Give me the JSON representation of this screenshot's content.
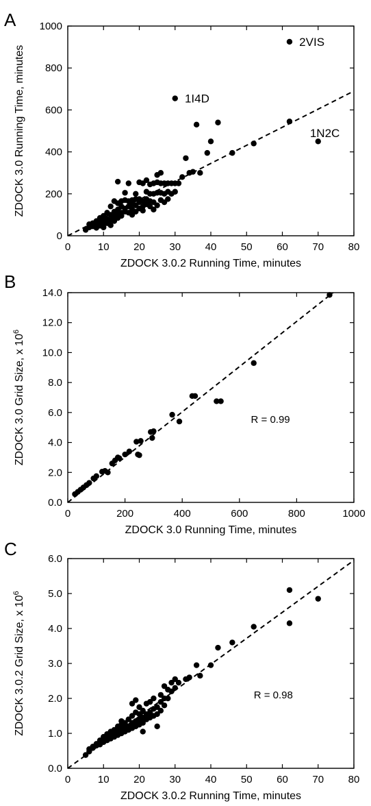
{
  "chart_data": [
    {
      "panel": "A",
      "type": "scatter",
      "xlabel": "ZDOCK 3.0.2 Running Time, minutes",
      "ylabel": "ZDOCK 3.0 Running Time, minutes",
      "xlim": [
        0,
        80
      ],
      "ylim": [
        0,
        1000
      ],
      "xticks": [
        0,
        10,
        20,
        30,
        40,
        50,
        60,
        70,
        80
      ],
      "yticks": [
        0,
        200,
        400,
        600,
        800,
        1000
      ],
      "tick_decimals": 0,
      "fit_line": [
        [
          0,
          0
        ],
        [
          80,
          690
        ]
      ],
      "annotations": [
        {
          "text": "2VIS",
          "x": 63,
          "y": 925
        },
        {
          "text": "1I4D",
          "x": 31,
          "y": 655
        },
        {
          "text": "1N2C",
          "x": 66,
          "y": 490
        }
      ],
      "points": [
        [
          5,
          28
        ],
        [
          6,
          40
        ],
        [
          6,
          55
        ],
        [
          7,
          45
        ],
        [
          7,
          60
        ],
        [
          8,
          38
        ],
        [
          8,
          50
        ],
        [
          8,
          70
        ],
        [
          9,
          62
        ],
        [
          9,
          85
        ],
        [
          9,
          48
        ],
        [
          10,
          55
        ],
        [
          10,
          72
        ],
        [
          10,
          95
        ],
        [
          10,
          40
        ],
        [
          11,
          60
        ],
        [
          11,
          80
        ],
        [
          11,
          110
        ],
        [
          11,
          65
        ],
        [
          12,
          50
        ],
        [
          12,
          75
        ],
        [
          12,
          100
        ],
        [
          12,
          140
        ],
        [
          13,
          90
        ],
        [
          13,
          115
        ],
        [
          13,
          165
        ],
        [
          13,
          70
        ],
        [
          14,
          100
        ],
        [
          14,
          125
        ],
        [
          14,
          155
        ],
        [
          14,
          85
        ],
        [
          14,
          258
        ],
        [
          15,
          110
        ],
        [
          15,
          140
        ],
        [
          15,
          165
        ],
        [
          15,
          95
        ],
        [
          16,
          115
        ],
        [
          16,
          130
        ],
        [
          16,
          170
        ],
        [
          16,
          205
        ],
        [
          17,
          110
        ],
        [
          17,
          140
        ],
        [
          17,
          165
        ],
        [
          17,
          250
        ],
        [
          18,
          125
        ],
        [
          18,
          150
        ],
        [
          18,
          170
        ],
        [
          18,
          100
        ],
        [
          19,
          115
        ],
        [
          19,
          145
        ],
        [
          19,
          175
        ],
        [
          19,
          200
        ],
        [
          20,
          130
        ],
        [
          20,
          160
        ],
        [
          20,
          175
        ],
        [
          20,
          255
        ],
        [
          21,
          140
        ],
        [
          21,
          165
        ],
        [
          21,
          250
        ],
        [
          21,
          120
        ],
        [
          22,
          150
        ],
        [
          22,
          175
        ],
        [
          22,
          210
        ],
        [
          22,
          265
        ],
        [
          23,
          140
        ],
        [
          23,
          165
        ],
        [
          23,
          200
        ],
        [
          23,
          245
        ],
        [
          24,
          160
        ],
        [
          24,
          200
        ],
        [
          24,
          250
        ],
        [
          24,
          125
        ],
        [
          25,
          145
        ],
        [
          25,
          205
        ],
        [
          25,
          255
        ],
        [
          25,
          290
        ],
        [
          26,
          170
        ],
        [
          26,
          205
        ],
        [
          26,
          250
        ],
        [
          26,
          300
        ],
        [
          27,
          160
        ],
        [
          27,
          200
        ],
        [
          27,
          250
        ],
        [
          28,
          175
        ],
        [
          28,
          210
        ],
        [
          28,
          250
        ],
        [
          29,
          200
        ],
        [
          29,
          250
        ],
        [
          30,
          210
        ],
        [
          30,
          250
        ],
        [
          30,
          655
        ],
        [
          31,
          250
        ],
        [
          32,
          280
        ],
        [
          33,
          370
        ],
        [
          34,
          300
        ],
        [
          35,
          305
        ],
        [
          36,
          530
        ],
        [
          37,
          300
        ],
        [
          39,
          395
        ],
        [
          40,
          450
        ],
        [
          42,
          540
        ],
        [
          46,
          395
        ],
        [
          52,
          440
        ],
        [
          62,
          545
        ],
        [
          62,
          925
        ],
        [
          70,
          450
        ]
      ]
    },
    {
      "panel": "B",
      "type": "scatter",
      "xlabel": "ZDOCK 3.0 Running Time, minutes",
      "ylabel": "ZDOCK 3.0 Grid Size, x 10",
      "ylabel_exp": "6",
      "xlim": [
        0,
        1000
      ],
      "ylim": [
        0,
        14
      ],
      "xticks": [
        0,
        200,
        400,
        600,
        800,
        1000
      ],
      "yticks": [
        0,
        2,
        4,
        6,
        8,
        10,
        12,
        14
      ],
      "tick_decimals": 1,
      "fit_line": [
        [
          0,
          0
        ],
        [
          1000,
          15.1
        ]
      ],
      "r_label": "R = 0.99",
      "r_pos": [
        640,
        5.3
      ],
      "points": [
        [
          25,
          0.55
        ],
        [
          35,
          0.7
        ],
        [
          45,
          0.85
        ],
        [
          55,
          1.0
        ],
        [
          65,
          1.15
        ],
        [
          75,
          1.3
        ],
        [
          90,
          1.6
        ],
        [
          100,
          1.75
        ],
        [
          120,
          2.05
        ],
        [
          130,
          2.1
        ],
        [
          140,
          2.0
        ],
        [
          155,
          2.6
        ],
        [
          165,
          2.8
        ],
        [
          175,
          3.0
        ],
        [
          180,
          2.95
        ],
        [
          200,
          3.2
        ],
        [
          215,
          3.4
        ],
        [
          240,
          4.05
        ],
        [
          245,
          3.2
        ],
        [
          250,
          3.15
        ],
        [
          255,
          4.1
        ],
        [
          290,
          4.7
        ],
        [
          295,
          4.3
        ],
        [
          300,
          4.75
        ],
        [
          365,
          5.85
        ],
        [
          390,
          5.4
        ],
        [
          435,
          7.1
        ],
        [
          445,
          7.1
        ],
        [
          520,
          6.75
        ],
        [
          535,
          6.75
        ],
        [
          650,
          9.3
        ],
        [
          915,
          13.85
        ]
      ]
    },
    {
      "panel": "C",
      "type": "scatter",
      "xlabel": "ZDOCK 3.0.2 Running Time, minutes",
      "ylabel": "ZDOCK 3.0.2 Grid Size, x 10",
      "ylabel_exp": "6",
      "xlim": [
        0,
        80
      ],
      "ylim": [
        0,
        6
      ],
      "xticks": [
        0,
        10,
        20,
        30,
        40,
        50,
        60,
        70,
        80
      ],
      "yticks": [
        0,
        1,
        2,
        3,
        4,
        5,
        6
      ],
      "tick_decimals": 1,
      "fit_line": [
        [
          0,
          0
        ],
        [
          80,
          5.95
        ]
      ],
      "r_label": "R = 0.98",
      "r_pos": [
        52,
        2.0
      ],
      "points": [
        [
          5,
          0.38
        ],
        [
          6,
          0.48
        ],
        [
          6,
          0.55
        ],
        [
          7,
          0.58
        ],
        [
          7,
          0.62
        ],
        [
          8,
          0.65
        ],
        [
          8,
          0.7
        ],
        [
          9,
          0.72
        ],
        [
          9,
          0.8
        ],
        [
          9,
          0.68
        ],
        [
          10,
          0.75
        ],
        [
          10,
          0.85
        ],
        [
          10,
          0.9
        ],
        [
          11,
          0.8
        ],
        [
          11,
          0.9
        ],
        [
          11,
          0.98
        ],
        [
          12,
          0.85
        ],
        [
          12,
          0.95
        ],
        [
          12,
          1.05
        ],
        [
          13,
          0.9
        ],
        [
          13,
          1.0
        ],
        [
          13,
          1.1
        ],
        [
          14,
          0.95
        ],
        [
          14,
          1.05
        ],
        [
          14,
          1.2
        ],
        [
          15,
          1.0
        ],
        [
          15,
          1.1
        ],
        [
          15,
          1.25
        ],
        [
          15,
          1.35
        ],
        [
          16,
          1.05
        ],
        [
          16,
          1.15
        ],
        [
          16,
          1.3
        ],
        [
          17,
          1.1
        ],
        [
          17,
          1.2
        ],
        [
          17,
          1.4
        ],
        [
          18,
          1.15
        ],
        [
          18,
          1.3
        ],
        [
          18,
          1.5
        ],
        [
          18,
          1.85
        ],
        [
          19,
          1.2
        ],
        [
          19,
          1.35
        ],
        [
          19,
          1.6
        ],
        [
          19,
          1.95
        ],
        [
          20,
          1.25
        ],
        [
          20,
          1.4
        ],
        [
          20,
          1.55
        ],
        [
          20,
          1.75
        ],
        [
          21,
          1.3
        ],
        [
          21,
          1.45
        ],
        [
          21,
          1.65
        ],
        [
          21,
          1.05
        ],
        [
          22,
          1.4
        ],
        [
          22,
          1.55
        ],
        [
          22,
          1.85
        ],
        [
          23,
          1.45
        ],
        [
          23,
          1.6
        ],
        [
          23,
          1.9
        ],
        [
          24,
          1.5
        ],
        [
          24,
          1.7
        ],
        [
          24,
          2.0
        ],
        [
          25,
          1.55
        ],
        [
          25,
          1.75
        ],
        [
          25,
          1.2
        ],
        [
          26,
          1.65
        ],
        [
          26,
          1.9
        ],
        [
          26,
          2.1
        ],
        [
          27,
          1.8
        ],
        [
          27,
          2.0
        ],
        [
          27,
          2.35
        ],
        [
          28,
          2.0
        ],
        [
          28,
          2.25
        ],
        [
          29,
          2.2
        ],
        [
          29,
          2.45
        ],
        [
          30,
          2.3
        ],
        [
          30,
          2.55
        ],
        [
          31,
          2.45
        ],
        [
          33,
          2.55
        ],
        [
          34,
          2.6
        ],
        [
          36,
          2.95
        ],
        [
          37,
          2.65
        ],
        [
          40,
          2.95
        ],
        [
          42,
          3.45
        ],
        [
          46,
          3.6
        ],
        [
          52,
          4.05
        ],
        [
          62,
          4.15
        ],
        [
          62,
          5.1
        ],
        [
          70,
          4.85
        ]
      ]
    }
  ]
}
